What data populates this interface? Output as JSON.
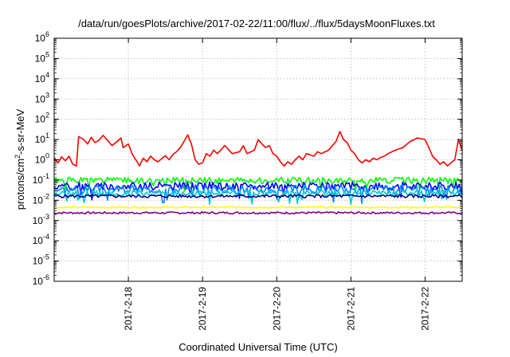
{
  "chart_data": {
    "type": "line",
    "title": "/data/run/goesPlots/archive/2017-02-22/11:00/flux/../flux/5daysMoonFluxes.txt",
    "xlabel": "Coordinated Universal Time (UTC)",
    "ylabel_parts": {
      "pre": "protons/cm",
      "sup": "2",
      "post": "-s-sr-MeV"
    },
    "y_scale": "log",
    "ylim": [
      1e-06,
      1000000.0
    ],
    "y_tick_exponents": [
      -6,
      -5,
      -4,
      -3,
      -2,
      -1,
      0,
      1,
      2,
      3,
      4,
      5,
      6
    ],
    "y_tick_base": "10",
    "xlim_days": [
      0,
      5.5
    ],
    "x_ticks": [
      {
        "label": "2017-2-18",
        "day": 1.0
      },
      {
        "label": "2017-2-19",
        "day": 2.0
      },
      {
        "label": "2017-2-20",
        "day": 3.0
      },
      {
        "label": "2017-2-21",
        "day": 4.0
      },
      {
        "label": "2017-2-22",
        "day": 5.0
      }
    ],
    "grid": true,
    "series": [
      {
        "color": "#ff0000",
        "points": [
          [
            0.0,
            1.3
          ],
          [
            0.05,
            0.7
          ],
          [
            0.1,
            1.4
          ],
          [
            0.15,
            0.9
          ],
          [
            0.2,
            1.5
          ],
          [
            0.25,
            0.6
          ],
          [
            0.3,
            0.5
          ],
          [
            0.33,
            14
          ],
          [
            0.4,
            10
          ],
          [
            0.45,
            6
          ],
          [
            0.5,
            13
          ],
          [
            0.55,
            7
          ],
          [
            0.6,
            9
          ],
          [
            0.66,
            16
          ],
          [
            0.72,
            9
          ],
          [
            0.78,
            5
          ],
          [
            0.85,
            8
          ],
          [
            0.9,
            12
          ],
          [
            0.93,
            4
          ],
          [
            1.0,
            6
          ],
          [
            1.05,
            2
          ],
          [
            1.1,
            1.0
          ],
          [
            1.15,
            0.5
          ],
          [
            1.2,
            1.2
          ],
          [
            1.25,
            0.8
          ],
          [
            1.3,
            1.5
          ],
          [
            1.35,
            1.0
          ],
          [
            1.4,
            0.8
          ],
          [
            1.5,
            1.6
          ],
          [
            1.55,
            1.0
          ],
          [
            1.6,
            1.8
          ],
          [
            1.65,
            2.5
          ],
          [
            1.7,
            4
          ],
          [
            1.75,
            8
          ],
          [
            1.8,
            17
          ],
          [
            1.85,
            6
          ],
          [
            1.9,
            1.0
          ],
          [
            1.95,
            0.6
          ],
          [
            2.0,
            0.7
          ],
          [
            2.05,
            2
          ],
          [
            2.1,
            1.5
          ],
          [
            2.15,
            3
          ],
          [
            2.2,
            2
          ],
          [
            2.3,
            5
          ],
          [
            2.4,
            2
          ],
          [
            2.5,
            2.5
          ],
          [
            2.55,
            5
          ],
          [
            2.6,
            2
          ],
          [
            2.7,
            3
          ],
          [
            2.75,
            10
          ],
          [
            2.8,
            6
          ],
          [
            2.85,
            4
          ],
          [
            2.9,
            5
          ],
          [
            2.95,
            2
          ],
          [
            3.0,
            1.5
          ],
          [
            3.05,
            0.8
          ],
          [
            3.1,
            0.5
          ],
          [
            3.15,
            0.8
          ],
          [
            3.2,
            0.6
          ],
          [
            3.25,
            1.0
          ],
          [
            3.3,
            1.5
          ],
          [
            3.35,
            1.0
          ],
          [
            3.4,
            2
          ],
          [
            3.5,
            1.5
          ],
          [
            3.55,
            2.5
          ],
          [
            3.6,
            2
          ],
          [
            3.7,
            3
          ],
          [
            3.75,
            5
          ],
          [
            3.8,
            8
          ],
          [
            3.85,
            25
          ],
          [
            3.9,
            10
          ],
          [
            3.95,
            7
          ],
          [
            4.0,
            3
          ],
          [
            4.05,
            2
          ],
          [
            4.1,
            1.0
          ],
          [
            4.15,
            0.7
          ],
          [
            4.2,
            1.0
          ],
          [
            4.25,
            0.8
          ],
          [
            4.3,
            1.2
          ],
          [
            4.35,
            1.0
          ],
          [
            4.4,
            1.3
          ],
          [
            4.45,
            1.5
          ],
          [
            4.5,
            2
          ],
          [
            4.6,
            3
          ],
          [
            4.7,
            4
          ],
          [
            4.8,
            8
          ],
          [
            4.9,
            12
          ],
          [
            5.0,
            10
          ],
          [
            5.05,
            4
          ],
          [
            5.1,
            1.5
          ],
          [
            5.15,
            1.0
          ],
          [
            5.2,
            0.6
          ],
          [
            5.25,
            0.8
          ],
          [
            5.3,
            0.5
          ],
          [
            5.35,
            0.7
          ],
          [
            5.4,
            1.0
          ],
          [
            5.45,
            10
          ],
          [
            5.5,
            3
          ]
        ]
      },
      {
        "color": "#00ff00",
        "base": 0.095,
        "amp": 0.16,
        "seed": 1
      },
      {
        "color": "#0000ff",
        "base": 0.05,
        "amp": 0.2,
        "seed": 2
      },
      {
        "color": "#0088ff",
        "base": 0.035,
        "amp": 0.2,
        "seed": 3
      },
      {
        "color": "#00cccc",
        "base": 0.022,
        "amp": 0.16,
        "seed": 4
      },
      {
        "color": "#00008b",
        "base": 0.016,
        "amp": 0.08,
        "seed": 5
      },
      {
        "color": "#ffff00",
        "base": 0.0045,
        "amp": 0.04,
        "seed": 6
      },
      {
        "color": "#800080",
        "base": 0.0024,
        "amp": 0.05,
        "seed": 7
      }
    ]
  }
}
